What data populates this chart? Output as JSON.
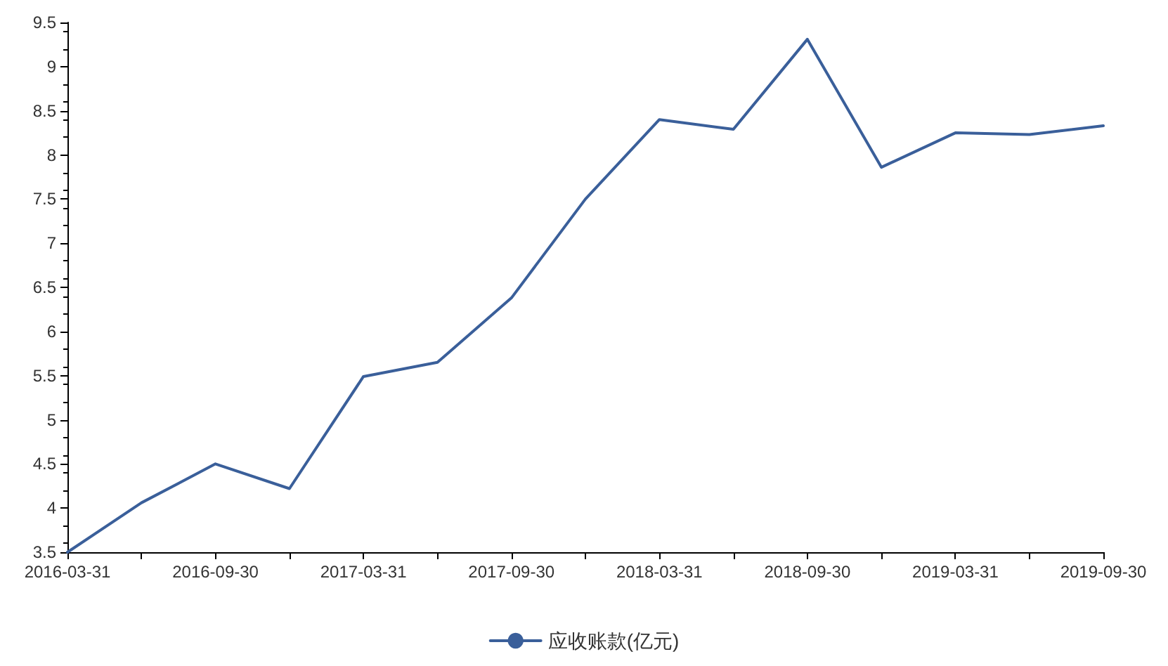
{
  "chart_data": {
    "type": "line",
    "categories": [
      "2016-03-31",
      null,
      "2016-09-30",
      null,
      "2017-03-31",
      null,
      "2017-09-30",
      null,
      "2018-03-31",
      null,
      "2018-09-30",
      null,
      "2019-03-31",
      null,
      "2019-09-30"
    ],
    "series": [
      {
        "name": "应收账款(亿元)",
        "color": "#3a5f9a",
        "values": [
          3.5,
          4.06,
          4.5,
          4.22,
          5.49,
          5.65,
          6.38,
          7.5,
          8.4,
          8.29,
          9.31,
          7.86,
          8.25,
          8.23,
          8.33
        ]
      }
    ],
    "ylim": [
      3.5,
      9.5
    ],
    "yticks": [
      3.5,
      4,
      4.5,
      5,
      5.5,
      6,
      6.5,
      7,
      7.5,
      8,
      8.5,
      9,
      9.5
    ],
    "grid": false,
    "legend": "bottom",
    "marker": "none",
    "line_style": "solid"
  }
}
